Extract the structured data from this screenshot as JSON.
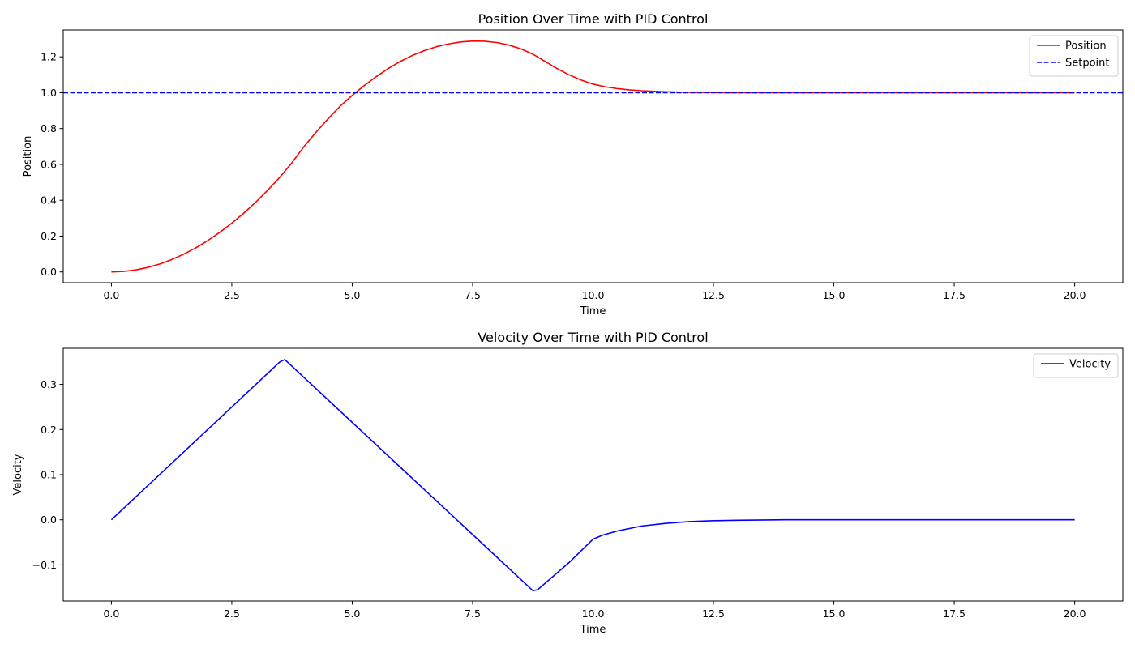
{
  "chart_data": [
    {
      "type": "line",
      "title": "Position Over Time with PID Control",
      "xlabel": "Time",
      "ylabel": "Position",
      "xlim": [
        -1.0,
        21.0
      ],
      "ylim": [
        -0.06,
        1.35
      ],
      "xticks": [
        0.0,
        2.5,
        5.0,
        7.5,
        10.0,
        12.5,
        15.0,
        17.5,
        20.0
      ],
      "xtick_labels": [
        "0.0",
        "2.5",
        "5.0",
        "7.5",
        "10.0",
        "12.5",
        "15.0",
        "17.5",
        "20.0"
      ],
      "yticks": [
        0.0,
        0.2,
        0.4,
        0.6,
        0.8,
        1.0,
        1.2
      ],
      "ytick_labels": [
        "0.0",
        "0.2",
        "0.4",
        "0.6",
        "0.8",
        "1.0",
        "1.2"
      ],
      "grid": false,
      "legend_position": "top-right",
      "series": [
        {
          "name": "Position",
          "color": "#ff0000",
          "style": "solid",
          "x": [
            0,
            0.25,
            0.5,
            0.75,
            1.0,
            1.25,
            1.5,
            1.75,
            2.0,
            2.25,
            2.5,
            2.75,
            3.0,
            3.25,
            3.5,
            3.75,
            4.0,
            4.25,
            4.5,
            4.75,
            5.0,
            5.25,
            5.5,
            5.75,
            6.0,
            6.25,
            6.5,
            6.75,
            7.0,
            7.25,
            7.5,
            7.75,
            8.0,
            8.25,
            8.5,
            8.75,
            9.0,
            9.25,
            9.5,
            9.75,
            10.0,
            10.25,
            10.5,
            10.75,
            11.0,
            11.5,
            12.0,
            12.5,
            13.0,
            14.0,
            15.0,
            16.0,
            17.0,
            18.0,
            19.0,
            20.0
          ],
          "y": [
            0.0,
            0.003,
            0.011,
            0.025,
            0.044,
            0.069,
            0.099,
            0.134,
            0.175,
            0.221,
            0.272,
            0.328,
            0.39,
            0.457,
            0.529,
            0.61,
            0.7,
            0.78,
            0.855,
            0.925,
            0.985,
            1.04,
            1.09,
            1.135,
            1.175,
            1.208,
            1.235,
            1.257,
            1.272,
            1.283,
            1.288,
            1.287,
            1.28,
            1.266,
            1.245,
            1.215,
            1.175,
            1.135,
            1.1,
            1.071,
            1.048,
            1.033,
            1.023,
            1.016,
            1.011,
            1.005,
            1.002,
            1.001,
            1.0,
            1.0,
            1.0,
            1.0,
            1.0,
            1.0,
            1.0,
            1.0
          ]
        },
        {
          "name": "Setpoint",
          "color": "#0000ff",
          "style": "dashed",
          "x": [
            -1.0,
            21.0
          ],
          "y": [
            1.0,
            1.0
          ]
        }
      ]
    },
    {
      "type": "line",
      "title": "Velocity Over Time with PID Control",
      "xlabel": "Time",
      "ylabel": "Velocity",
      "xlim": [
        -1.0,
        21.0
      ],
      "ylim": [
        -0.18,
        0.38
      ],
      "xticks": [
        0.0,
        2.5,
        5.0,
        7.5,
        10.0,
        12.5,
        15.0,
        17.5,
        20.0
      ],
      "xtick_labels": [
        "0.0",
        "2.5",
        "5.0",
        "7.5",
        "10.0",
        "12.5",
        "15.0",
        "17.5",
        "20.0"
      ],
      "yticks": [
        -0.1,
        0.0,
        0.1,
        0.2,
        0.3
      ],
      "ytick_labels": [
        "−0.1",
        "0.0",
        "0.1",
        "0.2",
        "0.3"
      ],
      "grid": false,
      "legend_position": "top-right",
      "series": [
        {
          "name": "Velocity",
          "color": "#0000ff",
          "style": "solid",
          "x": [
            0,
            3.5,
            3.6,
            8.75,
            8.85,
            9.5,
            10.0,
            10.2,
            10.5,
            11.0,
            11.5,
            12.0,
            12.5,
            13.0,
            14.0,
            15.0,
            17.5,
            20.0
          ],
          "y": [
            0.0,
            0.35,
            0.355,
            -0.157,
            -0.155,
            -0.095,
            -0.043,
            -0.034,
            -0.025,
            -0.014,
            -0.008,
            -0.004,
            -0.002,
            -0.001,
            0.0,
            0.0,
            0.0,
            0.0
          ]
        }
      ]
    }
  ]
}
